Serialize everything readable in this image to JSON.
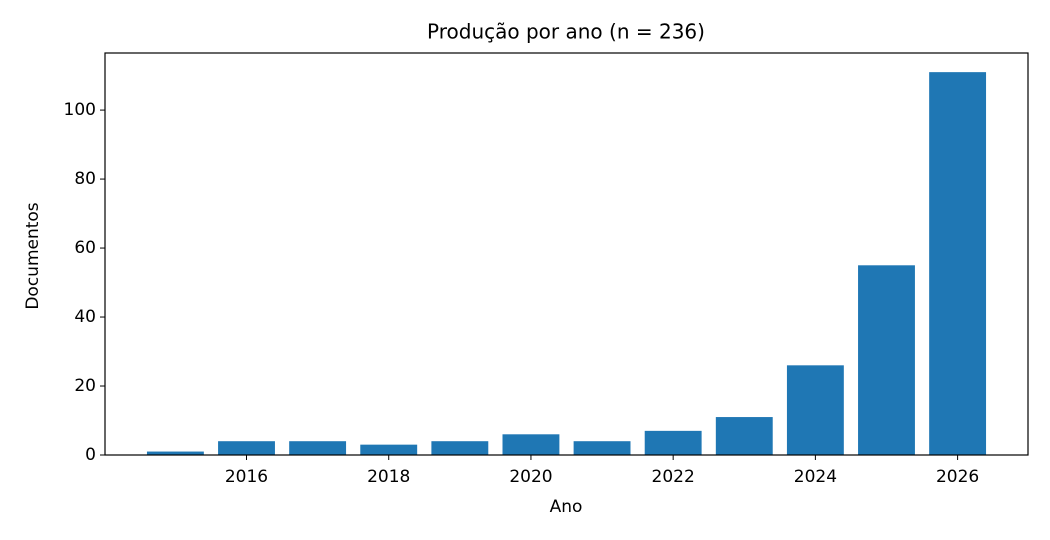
{
  "chart_data": {
    "type": "bar",
    "title": "Produção por ano (n = 236)",
    "x_label": "Ano",
    "y_label": "Documentos",
    "x": [
      2015,
      2016,
      2017,
      2018,
      2019,
      2020,
      2021,
      2022,
      2023,
      2024,
      2025,
      2026
    ],
    "values": [
      1,
      4,
      4,
      3,
      4,
      6,
      4,
      7,
      11,
      26,
      55,
      111
    ],
    "color": "#1f77b4",
    "xlim": [
      2014.01,
      2026.99
    ],
    "xticks": [
      2016,
      2018,
      2020,
      2022,
      2024,
      2026
    ],
    "ylim": [
      0,
      116.55
    ],
    "yticks": [
      0,
      20,
      40,
      60,
      80,
      100
    ],
    "grid": false
  }
}
